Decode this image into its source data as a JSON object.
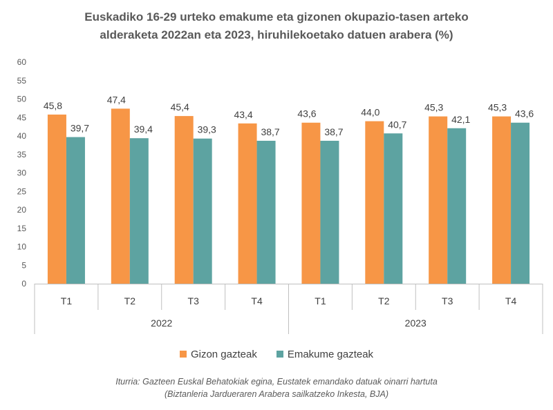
{
  "chart_data": {
    "type": "bar",
    "title_lines": [
      "Euskadiko  16-29 urteko emakume eta gizonen okupazio-tasen arteko",
      "alderaketa 2022an eta 2023, hiruhilekoetako datuen arabera (%)"
    ],
    "groups": [
      {
        "label": "2022",
        "categories": [
          "T1",
          "T2",
          "T3",
          "T4"
        ]
      },
      {
        "label": "2023",
        "categories": [
          "T1",
          "T2",
          "T3",
          "T4"
        ]
      }
    ],
    "series": [
      {
        "name": "Gizon gazteak",
        "color": "#F79646",
        "values": [
          45.8,
          47.4,
          45.4,
          43.4,
          43.6,
          44.0,
          45.3,
          45.3
        ],
        "labels": [
          "45,8",
          "47,4",
          "45,4",
          "43,4",
          "43,6",
          "44,0",
          "45,3",
          "45,3"
        ]
      },
      {
        "name": "Emakume gazteak",
        "color": "#5DA3A1",
        "values": [
          39.7,
          39.4,
          39.3,
          38.7,
          38.7,
          40.7,
          42.1,
          43.6
        ],
        "labels": [
          "39,7",
          "39,4",
          "39,3",
          "38,7",
          "38,7",
          "40,7",
          "42,1",
          "43,6"
        ]
      }
    ],
    "ylim": [
      0,
      60
    ],
    "yticks": [
      0,
      5,
      10,
      15,
      20,
      25,
      30,
      35,
      40,
      45,
      50,
      55,
      60
    ],
    "grid": false,
    "legend_position": "bottom",
    "source_lines": [
      "Iturria: Gazteen Euskal Behatokiak egina, Eustatek emandako datuak oinarri hartuta",
      "(Biztanleria Jardueraren Arabera sailkatzeko Inkesta, BJA)"
    ]
  }
}
